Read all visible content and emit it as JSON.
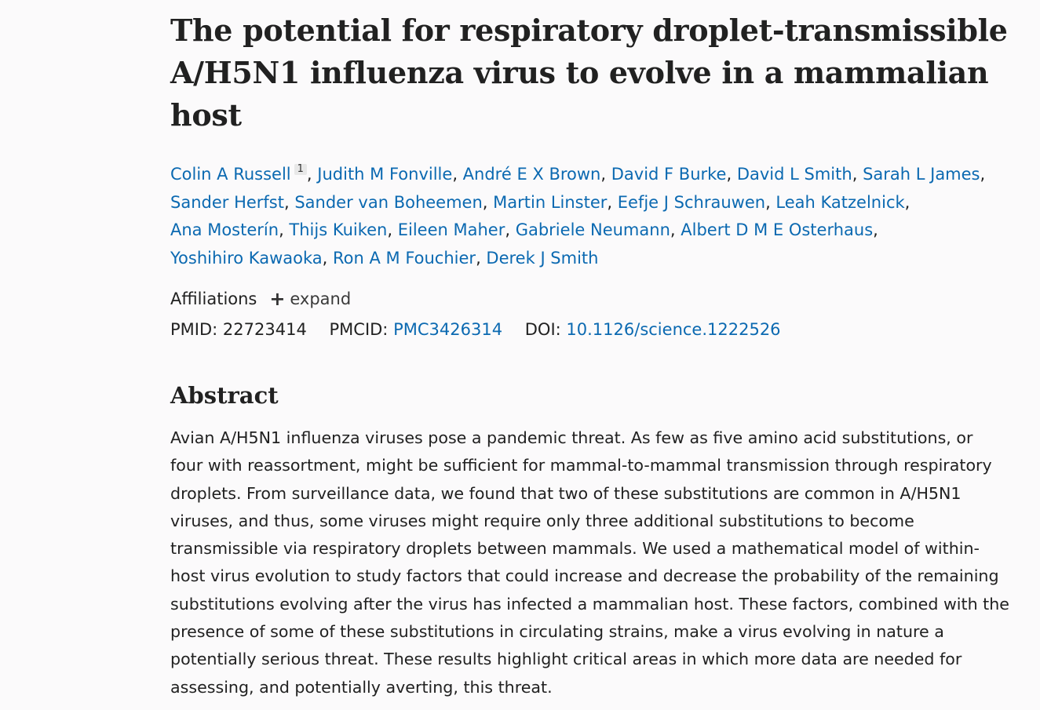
{
  "article": {
    "title": "The potential for respiratory droplet-transmissible A/H5N1 influenza virus to evolve in a mammalian host",
    "authors": [
      "Colin A Russell",
      "Judith M Fonville",
      "André E X Brown",
      "David F Burke",
      "David L Smith",
      "Sarah L James",
      "Sander Herfst",
      "Sander van Boheemen",
      "Martin Linster",
      "Eefje J Schrauwen",
      "Leah Katzelnick",
      "Ana Mosterín",
      "Thijs Kuiken",
      "Eileen Maher",
      "Gabriele Neumann",
      "Albert D M E Osterhaus",
      "Yoshihiro Kawaoka",
      "Ron A M Fouchier",
      "Derek J Smith"
    ],
    "first_author_affiliation_sup": "1",
    "affiliations_label": "Affiliations",
    "expand_label": "expand",
    "pmid_label": "PMID:",
    "pmid": "22723414",
    "pmcid_label": "PMCID:",
    "pmcid": "PMC3426314",
    "doi_label": "DOI:",
    "doi": "10.1126/science.1222526",
    "abstract_heading": "Abstract",
    "abstract_text": "Avian A/H5N1 influenza viruses pose a pandemic threat. As few as five amino acid substitutions, or four with reassortment, might be sufficient for mammal-to-mammal transmission through respiratory droplets. From surveillance data, we found that two of these substitutions are common in A/H5N1 viruses, and thus, some viruses might require only three additional substitutions to become transmissible via respiratory droplets between mammals. We used a mathematical model of within-host virus evolution to study factors that could increase and decrease the probability of the remaining substitutions evolving after the virus has infected a mammalian host. These factors, combined with the presence of some of these substitutions in circulating strains, make a virus evolving in nature a potentially serious threat. These results highlight critical areas in which more data are needed for assessing, and potentially averting, this threat."
  },
  "colors": {
    "link": "#0b69b1",
    "text": "#212121",
    "background": "#fbfafb"
  }
}
